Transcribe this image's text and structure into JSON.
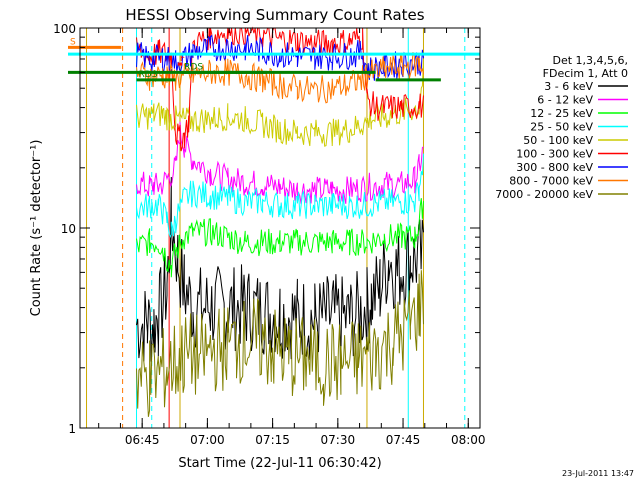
{
  "chart_data": {
    "type": "line",
    "title": "HESSI Observing Summary Count Rates",
    "xlabel": "Start Time (22-Jul-11 06:30:42)",
    "ylabel": "Count Rate (s⁻¹ detector⁻¹)",
    "yscale": "log",
    "ylim": [
      1,
      100
    ],
    "xlim_minutes": [
      0,
      92
    ],
    "yticks": [
      {
        "value": 1,
        "label": "1"
      },
      {
        "value": 10,
        "label": "10"
      },
      {
        "value": 100,
        "label": "100"
      }
    ],
    "xticks": [
      {
        "minute": 14.3,
        "label": "06:45"
      },
      {
        "minute": 29.3,
        "label": "07:00"
      },
      {
        "minute": 44.3,
        "label": "07:15"
      },
      {
        "minute": 59.3,
        "label": "07:30"
      },
      {
        "minute": 74.3,
        "label": "07:45"
      },
      {
        "minute": 89.3,
        "label": "08:00"
      }
    ],
    "legend": {
      "header": [
        "Det 1,3,4,5,6,",
        "FDecim 1, Att 0"
      ],
      "placement": "right"
    },
    "series": [
      {
        "name": "3 - 6 keV",
        "color": "#000000",
        "x": [
          0,
          7,
          13,
          15.5,
          17,
          18,
          20,
          21,
          22.5,
          24,
          26,
          30,
          34,
          38,
          42,
          46,
          50,
          54,
          58,
          62,
          66,
          67,
          69,
          71,
          73,
          76,
          79
        ],
        "y": [
          null,
          null,
          3.3,
          3.3,
          3.3,
          3.6,
          5,
          11,
          7,
          5,
          4,
          4,
          4,
          4,
          3.8,
          3.7,
          3.6,
          3.5,
          3.6,
          3.5,
          4,
          4.5,
          5,
          7,
          6,
          7,
          7
        ]
      },
      {
        "name": "6 - 12 keV",
        "color": "#ff00ff",
        "x": [
          13,
          16,
          17,
          18,
          20,
          22,
          23,
          24,
          26,
          30,
          34,
          38,
          42,
          46,
          50,
          54,
          58,
          62,
          66,
          70,
          74,
          77,
          78,
          79
        ],
        "y": [
          17,
          16,
          16.5,
          16,
          17.5,
          20,
          30,
          26,
          22,
          19,
          17.5,
          17,
          16.5,
          16,
          15.5,
          15.5,
          15.5,
          15.5,
          16,
          16.5,
          16.5,
          17.5,
          20,
          25
        ]
      },
      {
        "name": "12 - 25 keV",
        "color": "#00ff00",
        "x": [
          13,
          16,
          18,
          19,
          20,
          21,
          22,
          24,
          26,
          30,
          34,
          38,
          42,
          46,
          50,
          54,
          58,
          62,
          66,
          70,
          74,
          77,
          78,
          79
        ],
        "y": [
          8,
          8.5,
          8.5,
          8,
          7,
          6.5,
          7.5,
          9,
          9.5,
          9.5,
          9,
          8.5,
          8.5,
          8.5,
          8.5,
          8.5,
          8.5,
          8.5,
          8.5,
          9,
          9,
          9,
          10.5,
          14
        ]
      },
      {
        "name": "25 - 50 keV",
        "color": "#00ffff",
        "x": [
          13,
          16,
          18,
          19,
          20,
          21,
          22,
          24,
          26,
          30,
          34,
          38,
          42,
          46,
          50,
          54,
          58,
          62,
          66,
          70,
          74,
          77,
          78,
          79
        ],
        "y": [
          12.5,
          13,
          13,
          12,
          11,
          9.5,
          11,
          14,
          15,
          14.5,
          14,
          13.5,
          13.5,
          13,
          13,
          13,
          13,
          13,
          13,
          13.5,
          13.5,
          13.5,
          16,
          22
        ]
      },
      {
        "name": "50 - 100 keV",
        "color": "#cccc00",
        "x": [
          13,
          15,
          17,
          19,
          20,
          22,
          26,
          30,
          34,
          38,
          42,
          46,
          50,
          54,
          58,
          62,
          65,
          67,
          70,
          74,
          78,
          79
        ],
        "y": [
          36,
          36,
          37,
          37,
          36,
          35,
          34.5,
          35,
          36,
          35,
          33,
          31,
          30,
          30,
          30,
          31,
          33,
          35,
          36,
          38,
          40,
          60
        ]
      },
      {
        "name": "100 - 300 keV",
        "color": "#ff0000",
        "x": [
          13,
          16,
          18,
          20,
          21,
          22,
          23,
          24,
          25,
          26,
          30,
          34,
          38,
          42,
          46,
          50,
          54,
          58,
          62,
          65,
          66,
          68,
          71,
          74,
          78,
          79
        ],
        "y": [
          78,
          72,
          75,
          74,
          72,
          30,
          28,
          29,
          34,
          82,
          92,
          96,
          96,
          92,
          88,
          86,
          84,
          84,
          86,
          90,
          44,
          40,
          40,
          40,
          41,
          40
        ]
      },
      {
        "name": "300 - 800 keV",
        "color": "#0000ff",
        "x": [
          13,
          16,
          19,
          20,
          22,
          24,
          26,
          30,
          34,
          38,
          42,
          46,
          50,
          54,
          58,
          62,
          65,
          66,
          70,
          74,
          78,
          79
        ],
        "y": [
          74,
          70,
          71,
          70,
          68,
          70,
          76,
          79,
          80,
          79,
          77,
          74,
          72,
          72,
          72,
          73,
          75,
          62,
          64,
          66,
          68,
          66
        ]
      },
      {
        "name": "800 - 7000 keV",
        "color": "#ff7700",
        "x": [
          13,
          16,
          19,
          20,
          22,
          24,
          26,
          30,
          34,
          38,
          42,
          46,
          50,
          54,
          58,
          62,
          65,
          66,
          70,
          74,
          78,
          79
        ],
        "y": [
          60,
          57,
          58,
          57,
          56,
          57,
          58,
          60,
          60,
          58,
          55,
          52,
          50,
          49,
          50,
          52,
          56,
          58,
          62,
          64,
          66,
          64
        ]
      },
      {
        "name": "7000 - 20000 keV",
        "color": "#808000",
        "x": [
          13,
          16,
          18,
          20,
          24,
          28,
          32,
          36,
          40,
          44,
          48,
          52,
          56,
          60,
          64,
          68,
          72,
          76,
          78,
          79
        ],
        "y": [
          1.8,
          1.8,
          1.9,
          2,
          2.3,
          2.3,
          2.5,
          2.7,
          2.8,
          2.5,
          2.3,
          2.2,
          2.1,
          2.1,
          2.2,
          2.4,
          2.7,
          3.2,
          4,
          5
        ]
      }
    ],
    "annotations": {
      "markers": [
        {
          "label": "S",
          "color": "#ff7700",
          "y": 80,
          "x_start": -2,
          "x_end": 9.5
        },
        {
          "label": "F",
          "color": "#ff0000",
          "y": 66,
          "x_start": 22.5,
          "x_end": 23.5
        },
        {
          "label": "RDS",
          "color": "#008000",
          "y": 55,
          "x_start": 13,
          "x_end": 22
        },
        {
          "label": "RDS",
          "color": "#008000",
          "y": 60,
          "x_start": 23.5,
          "x_end": 43
        },
        {
          "label": "",
          "color": "#008000",
          "y": 60,
          "x_start": -2,
          "x_end": 68
        },
        {
          "label": "",
          "color": "#008000",
          "y": 55,
          "x_start": 68,
          "x_end": 83
        },
        {
          "label": "",
          "color": "#00ffff",
          "y": 74,
          "x_start": -2,
          "x_end": 92
        }
      ],
      "vlines": [
        {
          "minute": 1.5,
          "color": "#ccaa00",
          "style": "solid"
        },
        {
          "minute": 9.8,
          "color": "#ff7700",
          "style": "dashed"
        },
        {
          "minute": 13,
          "color": "#00ffff",
          "style": "solid"
        },
        {
          "minute": 16.5,
          "color": "#00ffff",
          "style": "dashed"
        },
        {
          "minute": 20.5,
          "color": "#ff0000",
          "style": "solid"
        },
        {
          "minute": 23,
          "color": "#ccaa00",
          "style": "solid"
        },
        {
          "minute": 66,
          "color": "#ccaa00",
          "style": "solid"
        },
        {
          "minute": 75.5,
          "color": "#00ffff",
          "style": "solid"
        },
        {
          "minute": 79,
          "color": "#ccaa00",
          "style": "solid"
        },
        {
          "minute": 88.5,
          "color": "#00ffff",
          "style": "dashed"
        }
      ]
    },
    "footer_date": "23-Jul-2011 13:47"
  }
}
